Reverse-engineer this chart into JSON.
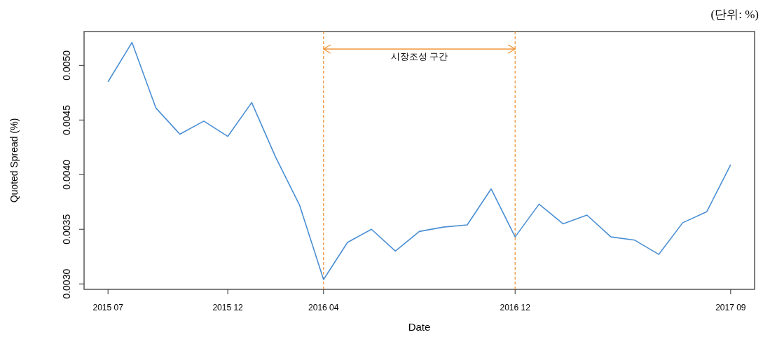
{
  "chart_data": {
    "type": "line",
    "xlabel": "Date",
    "ylabel": "Quoted Spread (%)",
    "x": [
      "2015-07",
      "2015-08",
      "2015-09",
      "2015-10",
      "2015-11",
      "2015-12",
      "2016-01",
      "2016-02",
      "2016-03",
      "2016-04",
      "2016-05",
      "2016-06",
      "2016-07",
      "2016-08",
      "2016-09",
      "2016-10",
      "2016-11",
      "2016-12",
      "2017-01",
      "2017-02",
      "2017-03",
      "2017-04",
      "2017-05",
      "2017-06",
      "2017-07",
      "2017-08",
      "2017-09"
    ],
    "series": [
      {
        "color": "#4a8fd4",
        "values": [
          0.00485,
          0.00521,
          0.00461,
          0.00437,
          0.00449,
          0.00435,
          0.00466,
          0.00416,
          0.00372,
          0.00304,
          0.00338,
          0.0035,
          0.0033,
          0.00348,
          0.00352,
          0.00354,
          0.00387,
          0.00343,
          0.00373,
          0.00355,
          0.00363,
          0.00343,
          0.0034,
          0.00327,
          0.00356,
          0.00366,
          0.00409
        ]
      }
    ],
    "xlim": [
      "2015-06",
      "2017-10"
    ],
    "xticks": [
      {
        "value": "2015-07",
        "label": "2015 07"
      },
      {
        "value": "2015-12",
        "label": "2015 12"
      },
      {
        "value": "2016-04",
        "label": "2016 04"
      },
      {
        "value": "2016-12",
        "label": "2016 12"
      },
      {
        "value": "2017-09",
        "label": "2017 09"
      }
    ],
    "ylim": [
      0.00295,
      0.00531
    ],
    "yticks": [
      {
        "value": 0.003,
        "label": "0.0030"
      },
      {
        "value": 0.0035,
        "label": "0.0035"
      },
      {
        "value": 0.004,
        "label": "0.0040"
      },
      {
        "value": 0.0045,
        "label": "0.0045"
      },
      {
        "value": 0.005,
        "label": "0.0050"
      }
    ],
    "ref_lines": [
      {
        "axis": "x",
        "value": "2016-04",
        "color": "#f0963c",
        "line_style": "dashed"
      },
      {
        "axis": "x",
        "value": "2016-12",
        "color": "#f0963c",
        "line_style": "dashed"
      }
    ],
    "annotations": [
      "시장조성 구간",
      "(단위: %)"
    ],
    "grid": false,
    "marker": "none",
    "line_style": "solid"
  }
}
